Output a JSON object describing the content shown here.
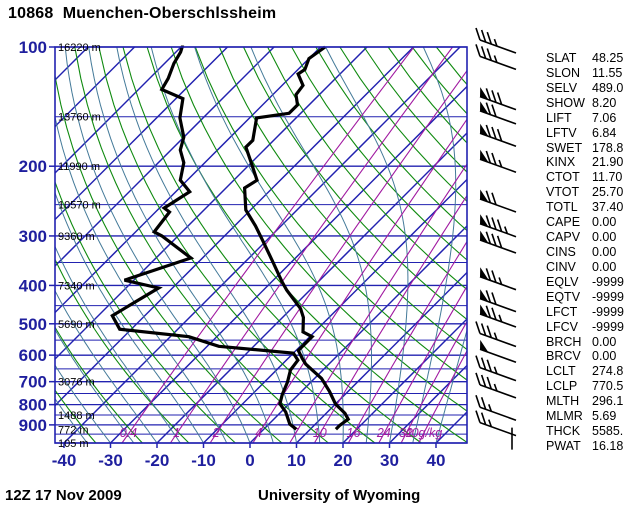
{
  "title": "10868  Muenchen-Oberschlssheim",
  "footer": {
    "left": "12Z 17 Nov 2009",
    "center": "University of Wyoming"
  },
  "colors": {
    "grid_blue": "#2222b0",
    "isotherm": "#2222b0",
    "axis_text": "#1f1f9e",
    "dry_adiabat": "#0f8a0f",
    "moist_adiabat": "#447a99",
    "mixing_ratio": "#a11aa1",
    "trace": "#000000",
    "height_text": "#000000"
  },
  "indices": [
    {
      "label": "SLAT",
      "value": "48.25"
    },
    {
      "label": "SLON",
      "value": "11.55"
    },
    {
      "label": "SELV",
      "value": "489.0"
    },
    {
      "label": "SHOW",
      "value": "8.20"
    },
    {
      "label": "LIFT",
      "value": "7.06"
    },
    {
      "label": "LFTV",
      "value": "6.84"
    },
    {
      "label": "SWET",
      "value": "178.8"
    },
    {
      "label": "KINX",
      "value": "21.90"
    },
    {
      "label": "CTOT",
      "value": "11.70"
    },
    {
      "label": "VTOT",
      "value": "25.70"
    },
    {
      "label": "TOTL",
      "value": "37.40"
    },
    {
      "label": "CAPE",
      "value": "0.00"
    },
    {
      "label": "CAPV",
      "value": "0.00"
    },
    {
      "label": "CINS",
      "value": "0.00"
    },
    {
      "label": "CINV",
      "value": "0.00"
    },
    {
      "label": "EQLV",
      "value": "-9999"
    },
    {
      "label": "EQTV",
      "value": "-9999"
    },
    {
      "label": "LFCT",
      "value": "-9999"
    },
    {
      "label": "LFCV",
      "value": "-9999"
    },
    {
      "label": "BRCH",
      "value": "0.00"
    },
    {
      "label": "BRCV",
      "value": "0.00"
    },
    {
      "label": "LCLT",
      "value": "274.8"
    },
    {
      "label": "LCLP",
      "value": "770.5"
    },
    {
      "label": "MLTH",
      "value": "296.1"
    },
    {
      "label": "MLMR",
      "value": "5.69"
    },
    {
      "label": "THCK",
      "value": "5585."
    },
    {
      "label": "PWAT",
      "value": "16.18"
    }
  ],
  "chart_data": {
    "type": "skewt_log_p",
    "station": "10868",
    "station_name": "Muenchen-Oberschlssheim",
    "pressure_axis": {
      "ticks": [
        100,
        200,
        300,
        400,
        500,
        600,
        700,
        800,
        900
      ],
      "range": [
        100,
        1000
      ],
      "scale": "log",
      "unit": "hPa"
    },
    "temp_axis": {
      "ticks": [
        -40,
        -30,
        -20,
        -10,
        0,
        10,
        20,
        30,
        40
      ],
      "unit": "C",
      "skew_deg": 45
    },
    "pressure_lines_hPa": {
      "min": 100,
      "max": 1000,
      "step": 50
    },
    "isotherms_C": {
      "min": -120,
      "max": 40,
      "step": 10
    },
    "dry_adiabats_theta_K": {
      "min": 240,
      "max": 440,
      "step": 10
    },
    "moist_adiabats_surface_C": {
      "min": -35,
      "max": 40,
      "step": 5
    },
    "mixing_ratio_lines": [
      0.4,
      1,
      2,
      4,
      7,
      10,
      16,
      24,
      32,
      40
    ],
    "mixing_ratio_label_texts": [
      "0.4",
      "1",
      "2",
      "4",
      "7",
      "10",
      "16",
      "24",
      "32",
      "40g/kg"
    ],
    "height_labels": [
      {
        "p": 100,
        "text": "16220 m"
      },
      {
        "p": 150,
        "text": "13760 m"
      },
      {
        "p": 200,
        "text": "11990 m"
      },
      {
        "p": 250,
        "text": "10570 m"
      },
      {
        "p": 300,
        "text": "9360 m"
      },
      {
        "p": 400,
        "text": "7340 m"
      },
      {
        "p": 500,
        "text": "5690 m"
      },
      {
        "p": 700,
        "text": "3076 m"
      },
      {
        "p": 850,
        "text": "1488 m"
      },
      {
        "p": 925,
        "text": "772 m"
      },
      {
        "p": 1000,
        "text": "105 m"
      }
    ],
    "temperature_profile": [
      {
        "p": 100,
        "t": -69
      },
      {
        "p": 107,
        "t": -70
      },
      {
        "p": 114,
        "t": -68.5
      },
      {
        "p": 117,
        "t": -69
      },
      {
        "p": 125,
        "t": -65.5
      },
      {
        "p": 132,
        "t": -65
      },
      {
        "p": 140,
        "t": -62.5
      },
      {
        "p": 147,
        "t": -62.5
      },
      {
        "p": 151,
        "t": -68.5
      },
      {
        "p": 172,
        "t": -64.5
      },
      {
        "p": 179,
        "t": -64.5
      },
      {
        "p": 200,
        "t": -59
      },
      {
        "p": 217,
        "t": -55
      },
      {
        "p": 227,
        "t": -56
      },
      {
        "p": 258,
        "t": -51
      },
      {
        "p": 283,
        "t": -45.5
      },
      {
        "p": 307,
        "t": -41
      },
      {
        "p": 349,
        "t": -34
      },
      {
        "p": 390,
        "t": -28
      },
      {
        "p": 411,
        "t": -25
      },
      {
        "p": 458,
        "t": -18
      },
      {
        "p": 482,
        "t": -15.5
      },
      {
        "p": 524,
        "t": -12.5
      },
      {
        "p": 539,
        "t": -9.5
      },
      {
        "p": 584,
        "t": -9.5
      },
      {
        "p": 611,
        "t": -7
      },
      {
        "p": 632,
        "t": -5
      },
      {
        "p": 661,
        "t": -1.5
      },
      {
        "p": 687,
        "t": 1.5
      },
      {
        "p": 741,
        "t": 6
      },
      {
        "p": 797,
        "t": 10
      },
      {
        "p": 841,
        "t": 14
      },
      {
        "p": 871,
        "t": 16
      },
      {
        "p": 902,
        "t": 15.5
      },
      {
        "p": 923,
        "t": 15.5
      }
    ],
    "dewpoint_profile": [
      {
        "p": 99,
        "t": -100
      },
      {
        "p": 103,
        "t": -99
      },
      {
        "p": 110,
        "t": -98
      },
      {
        "p": 120,
        "t": -96
      },
      {
        "p": 128,
        "t": -95
      },
      {
        "p": 135,
        "t": -88.5
      },
      {
        "p": 151,
        "t": -85
      },
      {
        "p": 169,
        "t": -80
      },
      {
        "p": 182,
        "t": -78
      },
      {
        "p": 196,
        "t": -74.5
      },
      {
        "p": 217,
        "t": -71.5
      },
      {
        "p": 232,
        "t": -67
      },
      {
        "p": 255,
        "t": -69
      },
      {
        "p": 261,
        "t": -67
      },
      {
        "p": 293,
        "t": -66
      },
      {
        "p": 300,
        "t": -63.5
      },
      {
        "p": 341,
        "t": -52.5
      },
      {
        "p": 388,
        "t": -62
      },
      {
        "p": 406,
        "t": -53
      },
      {
        "p": 477,
        "t": -57
      },
      {
        "p": 516,
        "t": -52.5
      },
      {
        "p": 539,
        "t": -36
      },
      {
        "p": 570,
        "t": -27.5
      },
      {
        "p": 593,
        "t": -10
      },
      {
        "p": 618,
        "t": -7.5
      },
      {
        "p": 654,
        "t": -7
      },
      {
        "p": 703,
        "t": -5
      },
      {
        "p": 754,
        "t": -3.5
      },
      {
        "p": 796,
        "t": -2
      },
      {
        "p": 835,
        "t": 1
      },
      {
        "p": 896,
        "t": 4.5
      },
      {
        "p": 923,
        "t": 7
      }
    ],
    "wind_barbs": [
      {
        "p": 100,
        "pennants": 0,
        "full": 3,
        "half": 1
      },
      {
        "p": 110,
        "pennants": 0,
        "full": 3,
        "half": 1
      },
      {
        "p": 139,
        "pennants": 1,
        "full": 3,
        "half": 0
      },
      {
        "p": 151,
        "pennants": 1,
        "full": 2,
        "half": 0
      },
      {
        "p": 172,
        "pennants": 1,
        "full": 3,
        "half": 0
      },
      {
        "p": 200,
        "pennants": 1,
        "full": 2,
        "half": 1
      },
      {
        "p": 252,
        "pennants": 1,
        "full": 2,
        "half": 0
      },
      {
        "p": 291,
        "pennants": 1,
        "full": 3,
        "half": 1
      },
      {
        "p": 320,
        "pennants": 1,
        "full": 3,
        "half": 0
      },
      {
        "p": 396,
        "pennants": 1,
        "full": 2,
        "half": 1
      },
      {
        "p": 450,
        "pennants": 1,
        "full": 2,
        "half": 0
      },
      {
        "p": 492,
        "pennants": 1,
        "full": 2,
        "half": 1
      },
      {
        "p": 551,
        "pennants": 0,
        "full": 3,
        "half": 1
      },
      {
        "p": 604,
        "pennants": 1,
        "full": 0,
        "half": 0
      },
      {
        "p": 672,
        "pennants": 0,
        "full": 3,
        "half": 1
      },
      {
        "p": 743,
        "pennants": 0,
        "full": 3,
        "half": 1
      },
      {
        "p": 846,
        "pennants": 0,
        "full": 2,
        "half": 1
      },
      {
        "p": 925,
        "pennants": 0,
        "full": 2,
        "half": 1
      },
      {
        "p": 958,
        "calm": true
      }
    ]
  }
}
